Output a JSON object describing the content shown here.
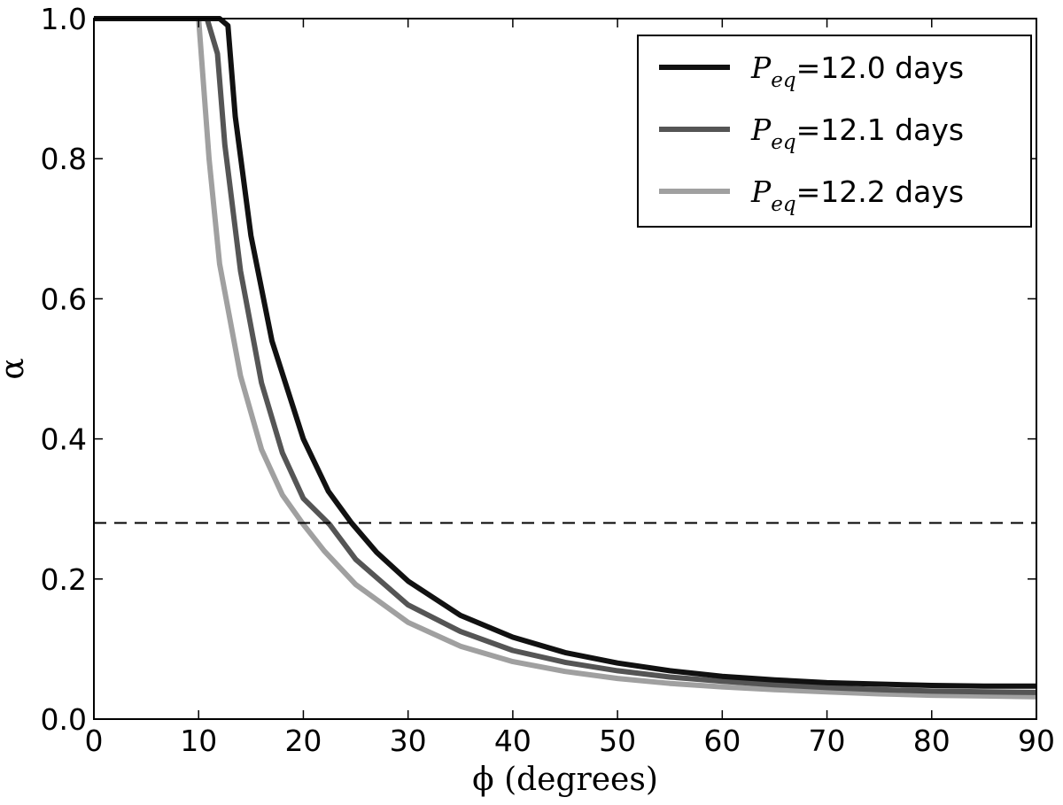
{
  "chart_data": {
    "type": "line",
    "title": "",
    "xlabel": "ϕ (degrees)",
    "ylabel": "α",
    "xlim": [
      0,
      90
    ],
    "ylim": [
      0.0,
      1.0
    ],
    "xticks": [
      "0",
      "10",
      "20",
      "30",
      "40",
      "50",
      "60",
      "70",
      "80",
      "90"
    ],
    "yticks": [
      "0.0",
      "0.2",
      "0.4",
      "0.6",
      "0.8",
      "1.0"
    ],
    "grid": false,
    "legend_position": "top-right",
    "reference_line": {
      "y": 0.28,
      "style": "dashed"
    },
    "series": [
      {
        "name": "12.0",
        "legend_symbol": "P",
        "legend_subscript": "eq",
        "legend_equals": "=",
        "legend_unit": "days",
        "color": "#111111",
        "x": [
          0,
          11,
          12,
          12.8,
          13.5,
          15,
          17,
          20,
          22.4,
          24.6,
          27,
          30,
          35,
          40,
          45,
          50,
          55,
          60,
          65,
          70,
          75,
          80,
          85,
          90
        ],
        "y": [
          1.0,
          1.0,
          1.0,
          0.99,
          0.86,
          0.69,
          0.54,
          0.4,
          0.325,
          0.28,
          0.238,
          0.197,
          0.148,
          0.117,
          0.095,
          0.08,
          0.069,
          0.061,
          0.056,
          0.052,
          0.05,
          0.048,
          0.047,
          0.047
        ]
      },
      {
        "name": "12.1",
        "legend_symbol": "P",
        "legend_subscript": "eq",
        "legend_equals": "=",
        "legend_unit": "days",
        "color": "#555555",
        "x": [
          0,
          10.8,
          11.8,
          12.5,
          14,
          16,
          18,
          20,
          22.5,
          25,
          30,
          35,
          40,
          45,
          50,
          55,
          60,
          65,
          70,
          75,
          80,
          85,
          90
        ],
        "y": [
          1.0,
          1.0,
          0.95,
          0.82,
          0.64,
          0.48,
          0.38,
          0.315,
          0.278,
          0.228,
          0.163,
          0.125,
          0.098,
          0.081,
          0.069,
          0.06,
          0.054,
          0.049,
          0.045,
          0.042,
          0.04,
          0.039,
          0.038
        ]
      },
      {
        "name": "12.2",
        "legend_symbol": "P",
        "legend_subscript": "eq",
        "legend_equals": "=",
        "legend_unit": "days",
        "color": "#a0a0a0",
        "x": [
          0,
          10,
          11,
          12,
          14,
          16,
          18,
          20,
          22,
          25,
          30,
          35,
          40,
          45,
          50,
          55,
          60,
          65,
          70,
          75,
          80,
          85,
          90
        ],
        "y": [
          1.0,
          1.0,
          0.8,
          0.65,
          0.49,
          0.385,
          0.32,
          0.278,
          0.24,
          0.192,
          0.138,
          0.104,
          0.082,
          0.068,
          0.058,
          0.051,
          0.046,
          0.042,
          0.039,
          0.036,
          0.034,
          0.033,
          0.032
        ]
      }
    ]
  }
}
